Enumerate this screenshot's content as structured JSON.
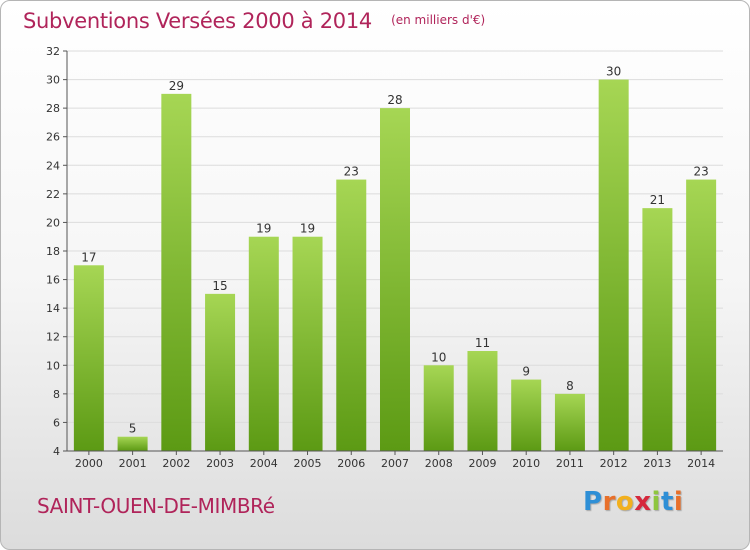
{
  "header": {
    "title": "Subventions Versées 2000 à 2014",
    "unit_note": "(en milliers d'€)"
  },
  "footer": {
    "commune": "SAINT-OUEN-DE-MIMBRé",
    "logo_letters": [
      "P",
      "r",
      "o",
      "x",
      "i",
      "t",
      "i"
    ],
    "logo_colors": [
      "#2e8fd6",
      "#e8702a",
      "#f2b01e",
      "#d6283c",
      "#8ec63f",
      "#2e8fd6",
      "#e8702a"
    ]
  },
  "chart_data": {
    "type": "bar",
    "title": "Subventions Versées 2000 à 2014",
    "subtitle": "(en milliers d'€)",
    "categories": [
      "2000",
      "2001",
      "2002",
      "2003",
      "2004",
      "2005",
      "2006",
      "2007",
      "2008",
      "2009",
      "2010",
      "2011",
      "2012",
      "2013",
      "2014"
    ],
    "values": [
      17,
      5,
      29,
      15,
      19,
      19,
      23,
      28,
      10,
      11,
      9,
      8,
      30,
      21,
      23
    ],
    "data_labels": [
      "17",
      "5",
      "29",
      "15",
      "19",
      "19",
      "23",
      "28",
      "10",
      "11",
      "9",
      "8",
      "30",
      "21",
      "23"
    ],
    "ylim": [
      4,
      32
    ],
    "yticks": [
      "4",
      "6",
      "8",
      "10",
      "12",
      "14",
      "16",
      "18",
      "20",
      "22",
      "24",
      "26",
      "28",
      "30",
      "32"
    ],
    "xlabel": "",
    "ylabel": "",
    "grid": true,
    "colors": {
      "bar_light": "#a6d654",
      "bar_dark": "#5c9a14",
      "grid": "#dcdcdc",
      "axis": "#555555",
      "text": "#333333"
    }
  }
}
